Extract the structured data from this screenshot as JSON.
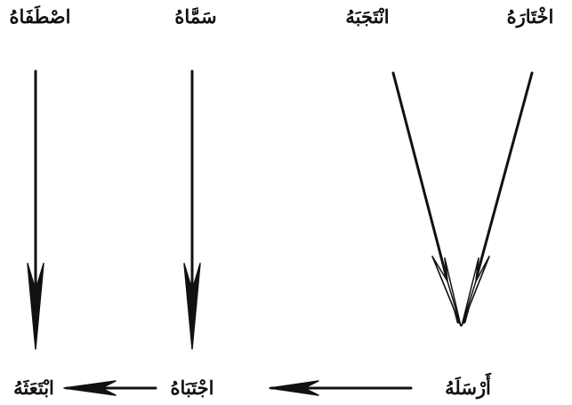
{
  "diagram": {
    "top_words": [
      "اخْتَارَهُ",
      "انْتَجَبَهُ",
      "سَمَّاهُ",
      "اصْطَفَاهُ"
    ],
    "bottom_words": [
      "أَرْسَلَهُ",
      "اجْتَبَاهُ",
      "ابْتَعَثَهُ"
    ],
    "colors": {
      "ink": "#111111",
      "background": "#ffffff"
    }
  }
}
